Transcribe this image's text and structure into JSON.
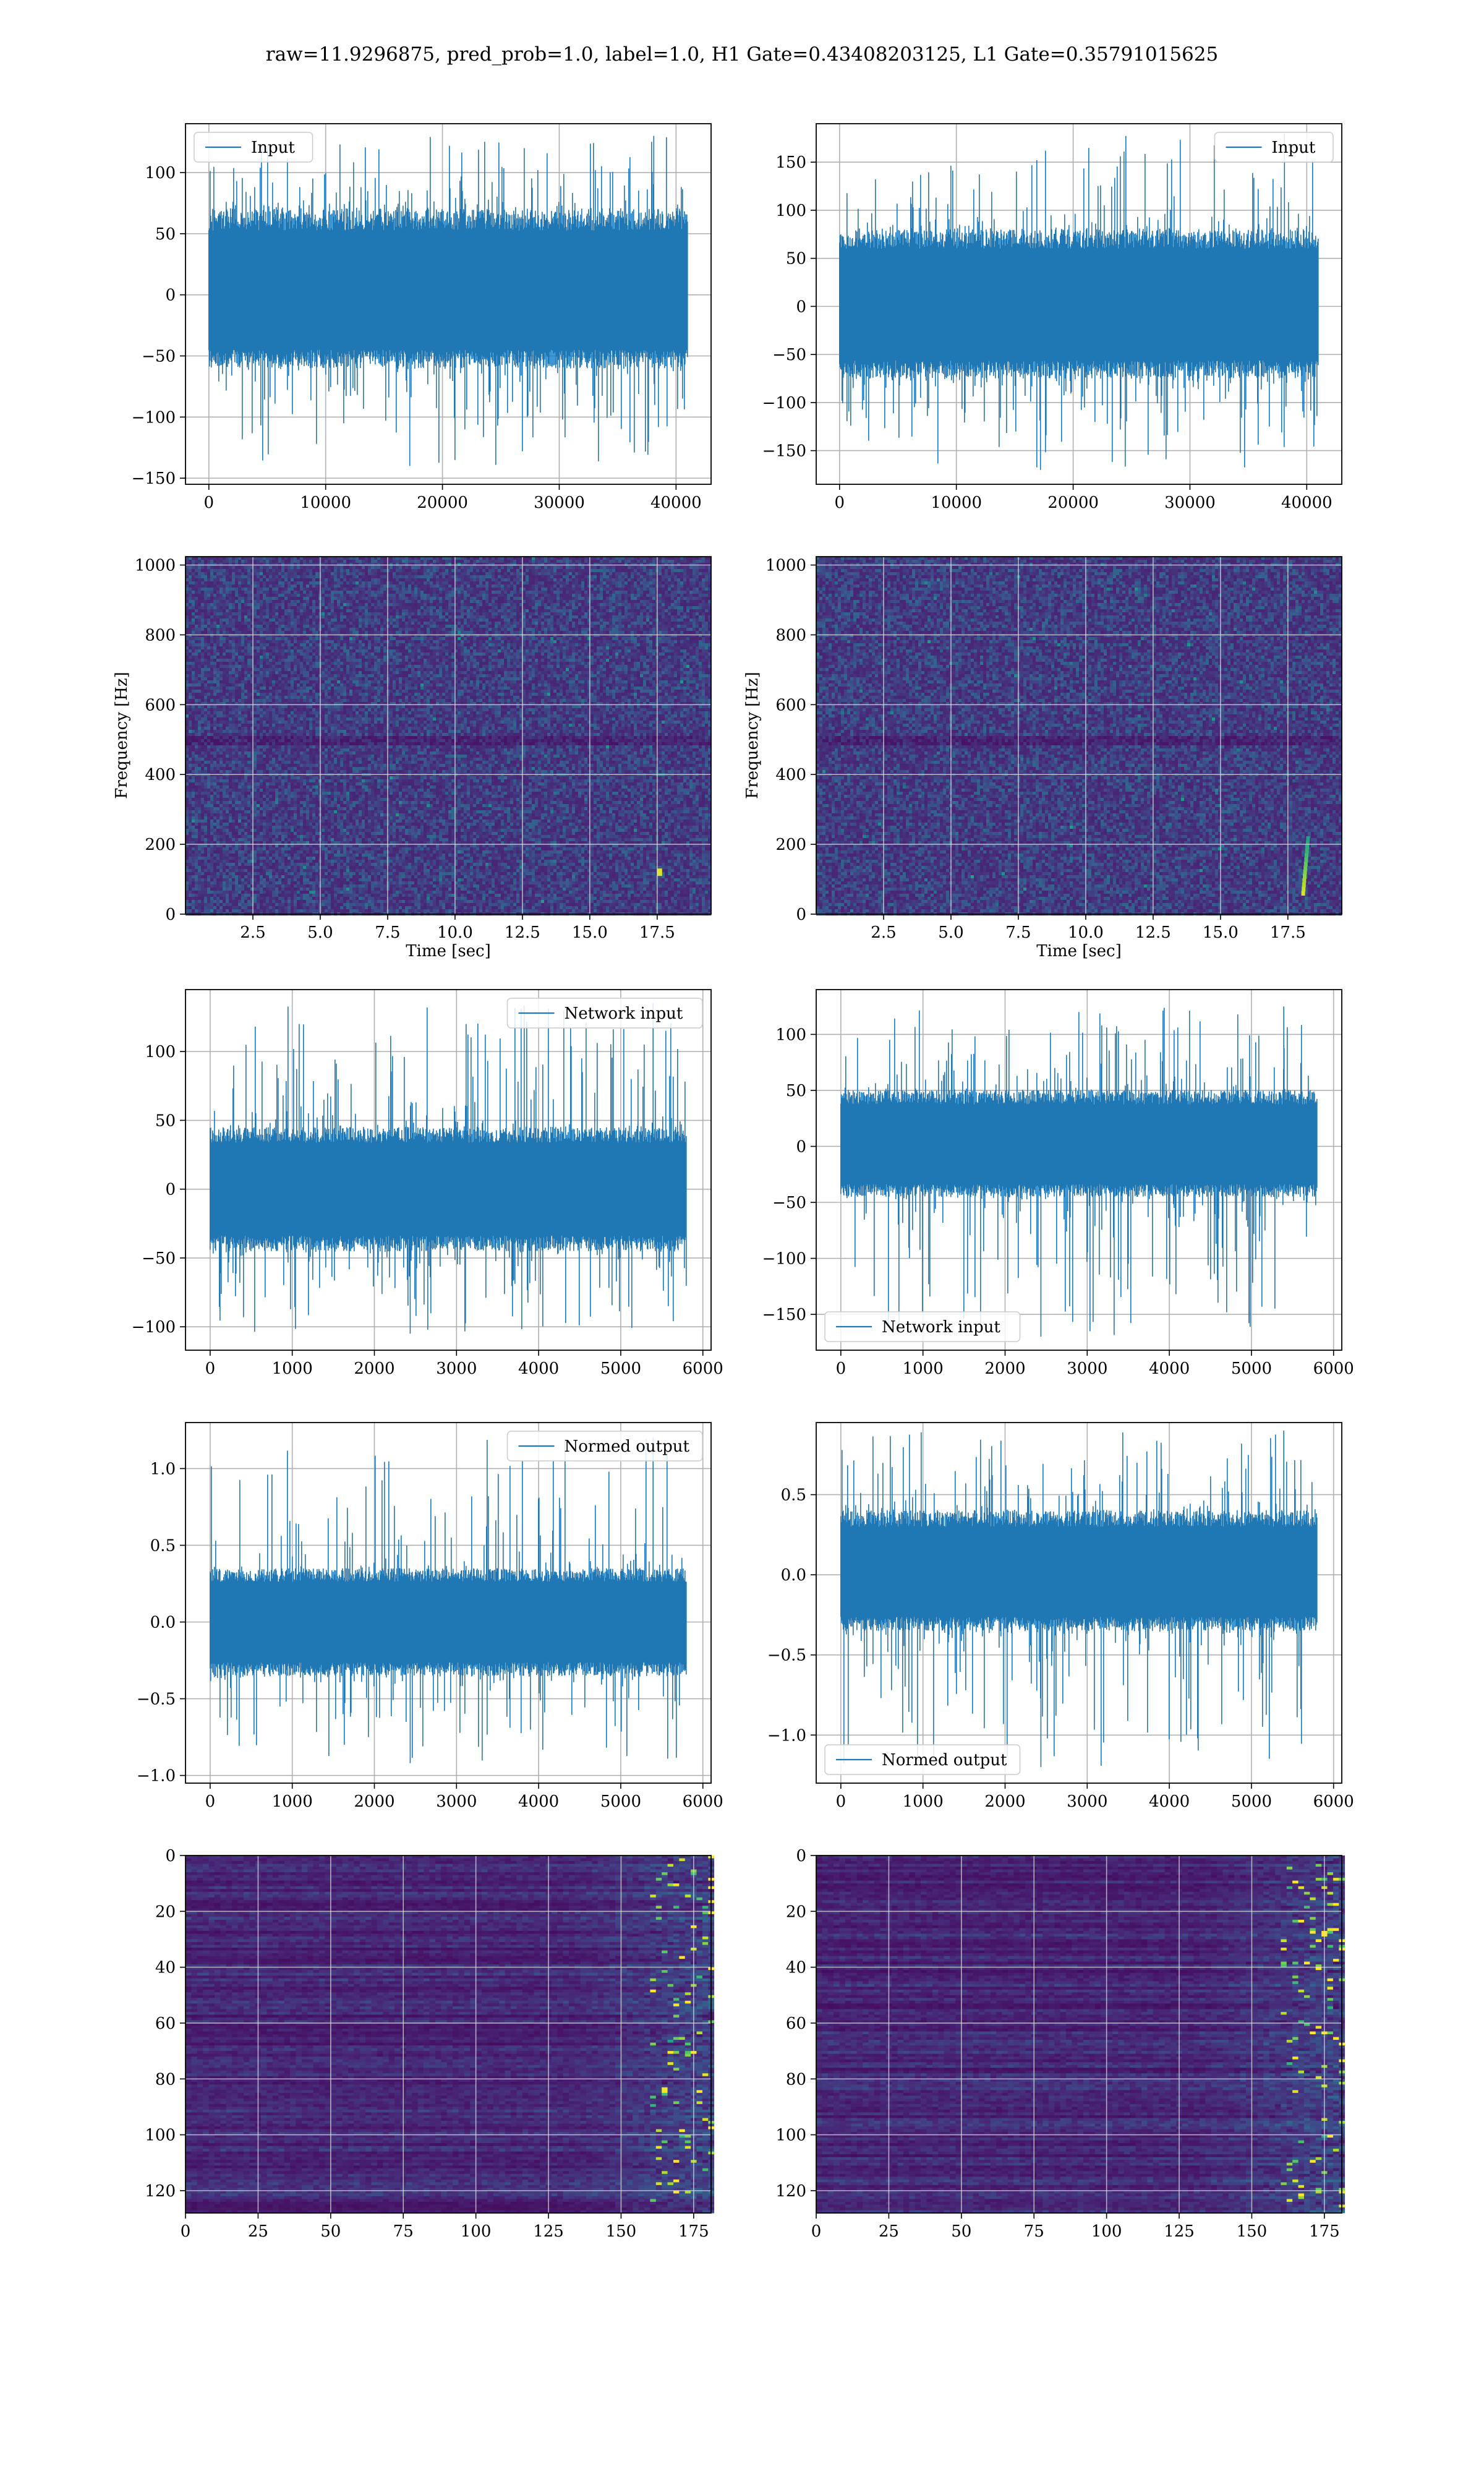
{
  "figure": {
    "suptitle": "raw=11.9296875, pred_prob=1.0, label=1.0, H1 Gate=0.43408203125, L1 Gate=0.35791015625",
    "line_color": "#1f77b4"
  },
  "chart_data": [
    {
      "id": "h1_input",
      "type": "line",
      "row": 0,
      "col": 0,
      "title": "",
      "xlabel": "",
      "ylabel": "",
      "series": [
        {
          "name": "Input",
          "n_points": 40960,
          "envelope_typical": [
            -60,
            70
          ],
          "envelope_spikes": [
            -140,
            130
          ]
        }
      ],
      "legend": "upper left",
      "xlim": [
        -2000,
        43000
      ],
      "ylim": [
        -155,
        140
      ],
      "xticks": [
        0,
        10000,
        20000,
        30000,
        40000
      ],
      "yticks": [
        -150,
        -100,
        -50,
        0,
        50,
        100
      ],
      "grid": true
    },
    {
      "id": "l1_input",
      "type": "line",
      "row": 0,
      "col": 1,
      "title": "",
      "xlabel": "",
      "ylabel": "",
      "series": [
        {
          "name": "Input",
          "n_points": 40960,
          "envelope_typical": [
            -75,
            80
          ],
          "envelope_spikes": [
            -170,
            180
          ]
        }
      ],
      "legend": "upper right",
      "xlim": [
        -2000,
        43000
      ],
      "ylim": [
        -185,
        190
      ],
      "xticks": [
        0,
        10000,
        20000,
        30000,
        40000
      ],
      "yticks": [
        -150,
        -100,
        -50,
        0,
        50,
        100,
        150
      ],
      "grid": true
    },
    {
      "id": "h1_spectrogram",
      "type": "heatmap",
      "row": 1,
      "col": 0,
      "title": "",
      "xlabel": "Time [sec]",
      "ylabel": "Frequency [Hz]",
      "xlim": [
        0,
        19.5
      ],
      "ylim": [
        0,
        1024
      ],
      "xticks": [
        2.5,
        5.0,
        7.5,
        10.0,
        12.5,
        15.0,
        17.5
      ],
      "yticks": [
        0,
        200,
        400,
        600,
        800,
        1000
      ],
      "colormap": "viridis",
      "grid": true,
      "notable": [
        {
          "t": 17.5,
          "f": 120,
          "note": "bright"
        }
      ]
    },
    {
      "id": "l1_spectrogram",
      "type": "heatmap",
      "row": 1,
      "col": 1,
      "title": "",
      "xlabel": "Time [sec]",
      "ylabel": "Frequency [Hz]",
      "xlim": [
        0,
        19.5
      ],
      "ylim": [
        0,
        1024
      ],
      "xticks": [
        2.5,
        5.0,
        7.5,
        10.0,
        12.5,
        15.0,
        17.5
      ],
      "yticks": [
        0,
        200,
        400,
        600,
        800,
        1000
      ],
      "colormap": "viridis",
      "grid": true,
      "notable": [
        {
          "t": 18.0,
          "f": 60,
          "note": "chirp"
        }
      ]
    },
    {
      "id": "h1_network_input",
      "type": "line",
      "row": 2,
      "col": 0,
      "title": "",
      "xlabel": "",
      "ylabel": "",
      "series": [
        {
          "name": "Network input",
          "n_points": 5800,
          "envelope_typical": [
            -45,
            45
          ],
          "envelope_spikes": [
            -105,
            135
          ]
        }
      ],
      "legend": "upper right",
      "xlim": [
        -300,
        6100
      ],
      "ylim": [
        -117,
        145
      ],
      "xticks": [
        0,
        1000,
        2000,
        3000,
        4000,
        5000,
        6000
      ],
      "yticks": [
        -100,
        -50,
        0,
        50,
        100
      ],
      "grid": true
    },
    {
      "id": "l1_network_input",
      "type": "line",
      "row": 2,
      "col": 1,
      "title": "",
      "xlabel": "",
      "ylabel": "",
      "series": [
        {
          "name": "Network input",
          "n_points": 5800,
          "envelope_typical": [
            -45,
            50
          ],
          "envelope_spikes": [
            -170,
            125
          ]
        }
      ],
      "legend": "lower left",
      "xlim": [
        -300,
        6100
      ],
      "ylim": [
        -182,
        140
      ],
      "xticks": [
        0,
        1000,
        2000,
        3000,
        4000,
        5000,
        6000
      ],
      "yticks": [
        -150,
        -100,
        -50,
        0,
        50,
        100
      ],
      "grid": true
    },
    {
      "id": "h1_normed_output",
      "type": "line",
      "row": 3,
      "col": 0,
      "title": "",
      "xlabel": "",
      "ylabel": "",
      "series": [
        {
          "name": "Normed output",
          "n_points": 5800,
          "envelope_typical": [
            -0.35,
            0.35
          ],
          "envelope_spikes": [
            -0.92,
            1.2
          ]
        }
      ],
      "legend": "upper right",
      "xlim": [
        -300,
        6100
      ],
      "ylim": [
        -1.05,
        1.3
      ],
      "xticks": [
        0,
        1000,
        2000,
        3000,
        4000,
        5000,
        6000
      ],
      "yticks": [
        -1.0,
        -0.5,
        0.0,
        0.5,
        1.0
      ],
      "grid": true
    },
    {
      "id": "l1_normed_output",
      "type": "line",
      "row": 3,
      "col": 1,
      "title": "",
      "xlabel": "",
      "ylabel": "",
      "series": [
        {
          "name": "Normed output",
          "n_points": 5800,
          "envelope_typical": [
            -0.35,
            0.4
          ],
          "envelope_spikes": [
            -1.2,
            0.9
          ]
        }
      ],
      "legend": "lower left",
      "xlim": [
        -300,
        6100
      ],
      "ylim": [
        -1.3,
        0.95
      ],
      "xticks": [
        0,
        1000,
        2000,
        3000,
        4000,
        5000,
        6000
      ],
      "yticks": [
        -1.0,
        -0.5,
        0.0,
        0.5
      ],
      "grid": true
    },
    {
      "id": "h1_feature_map",
      "type": "heatmap",
      "row": 4,
      "col": 0,
      "title": "",
      "xlabel": "",
      "ylabel": "",
      "n_rows": 128,
      "n_cols": 182,
      "xlim": [
        0,
        181
      ],
      "ylim": [
        128,
        0
      ],
      "xticks": [
        0,
        25,
        50,
        75,
        100,
        125,
        150,
        175
      ],
      "yticks": [
        0,
        20,
        40,
        60,
        80,
        100,
        120
      ],
      "colormap": "viridis",
      "grid": true,
      "activity_region_cols": [
        150,
        181
      ]
    },
    {
      "id": "l1_feature_map",
      "type": "heatmap",
      "row": 4,
      "col": 1,
      "title": "",
      "xlabel": "",
      "ylabel": "",
      "n_rows": 128,
      "n_cols": 182,
      "xlim": [
        0,
        181
      ],
      "ylim": [
        128,
        0
      ],
      "xticks": [
        0,
        25,
        50,
        75,
        100,
        125,
        150,
        175
      ],
      "yticks": [
        0,
        20,
        40,
        60,
        80,
        100,
        120
      ],
      "colormap": "viridis",
      "grid": true,
      "activity_region_cols": [
        150,
        181
      ]
    }
  ]
}
